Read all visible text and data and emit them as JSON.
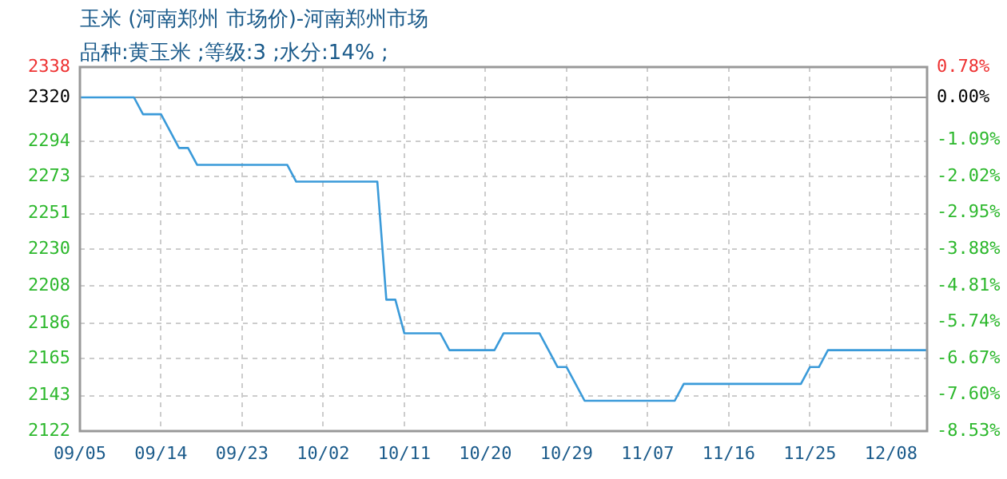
{
  "chart_data": {
    "type": "line",
    "title": "玉米 (河南郑州 市场价)-河南郑州市场",
    "subtitle": "品种:黄玉米 ;等级:3 ;水分:14% ;",
    "categories": [
      "09/05",
      null,
      null,
      null,
      null,
      null,
      null,
      null,
      null,
      "09/14",
      null,
      null,
      null,
      null,
      null,
      null,
      null,
      null,
      "09/23",
      null,
      null,
      null,
      null,
      null,
      null,
      null,
      null,
      "10/02",
      null,
      null,
      null,
      null,
      null,
      null,
      null,
      null,
      "10/11",
      null,
      null,
      null,
      null,
      null,
      null,
      null,
      null,
      "10/20",
      null,
      null,
      null,
      null,
      null,
      null,
      null,
      null,
      "10/29",
      null,
      null,
      null,
      null,
      null,
      null,
      null,
      null,
      "11/07",
      null,
      null,
      null,
      null,
      null,
      null,
      null,
      null,
      "11/16",
      null,
      null,
      null,
      null,
      null,
      null,
      null,
      null,
      "11/25",
      null,
      null,
      null,
      null,
      null,
      null,
      null,
      null,
      "12/08",
      null,
      null,
      null,
      null
    ],
    "series": [
      {
        "color": "#3a9ad9",
        "values": [
          2320,
          2320,
          2320,
          2320,
          2320,
          2320,
          2320,
          2310,
          2310,
          2310,
          2300,
          2290,
          2290,
          2280,
          2280,
          2280,
          2280,
          2280,
          2280,
          2280,
          2280,
          2280,
          2280,
          2280,
          2270,
          2270,
          2270,
          2270,
          2270,
          2270,
          2270,
          2270,
          2270,
          2270,
          2200,
          2200,
          2180,
          2180,
          2180,
          2180,
          2180,
          2170,
          2170,
          2170,
          2170,
          2170,
          2170,
          2180,
          2180,
          2180,
          2180,
          2180,
          2170,
          2160,
          2160,
          2150,
          2140,
          2140,
          2140,
          2140,
          2140,
          2140,
          2140,
          2140,
          2140,
          2140,
          2140,
          2150,
          2150,
          2150,
          2150,
          2150,
          2150,
          2150,
          2150,
          2150,
          2150,
          2150,
          2150,
          2150,
          2150,
          2160,
          2160,
          2170,
          2170,
          2170,
          2170,
          2170,
          2170,
          2170,
          2170,
          2170,
          2170,
          2170,
          2170
        ]
      }
    ],
    "ylim": [
      2122,
      2338
    ],
    "yticks": [
      2122,
      2143,
      2165,
      2186,
      2208,
      2230,
      2251,
      2273,
      2294,
      2320,
      2338
    ],
    "y2lim": [
      -8.53,
      0.78
    ],
    "y2ticks": [
      {
        "value": -8.53,
        "label": "-8.53%"
      },
      {
        "value": -7.6,
        "label": "-7.60%"
      },
      {
        "value": -6.67,
        "label": "-6.67%"
      },
      {
        "value": -5.74,
        "label": "-5.74%"
      },
      {
        "value": -4.81,
        "label": "-4.81%"
      },
      {
        "value": -3.88,
        "label": "-3.88%"
      },
      {
        "value": -2.95,
        "label": "-2.95%"
      },
      {
        "value": -2.02,
        "label": "-2.02%"
      },
      {
        "value": -1.09,
        "label": "-1.09%"
      },
      {
        "value": 0,
        "label": "0.00%"
      },
      {
        "value": 0.78,
        "label": "0.78%"
      }
    ],
    "ref_lines": [
      {
        "axis": "y",
        "value": 2320,
        "color": "#999999"
      }
    ],
    "grid": true,
    "marker": "none",
    "line_style": "solid"
  }
}
